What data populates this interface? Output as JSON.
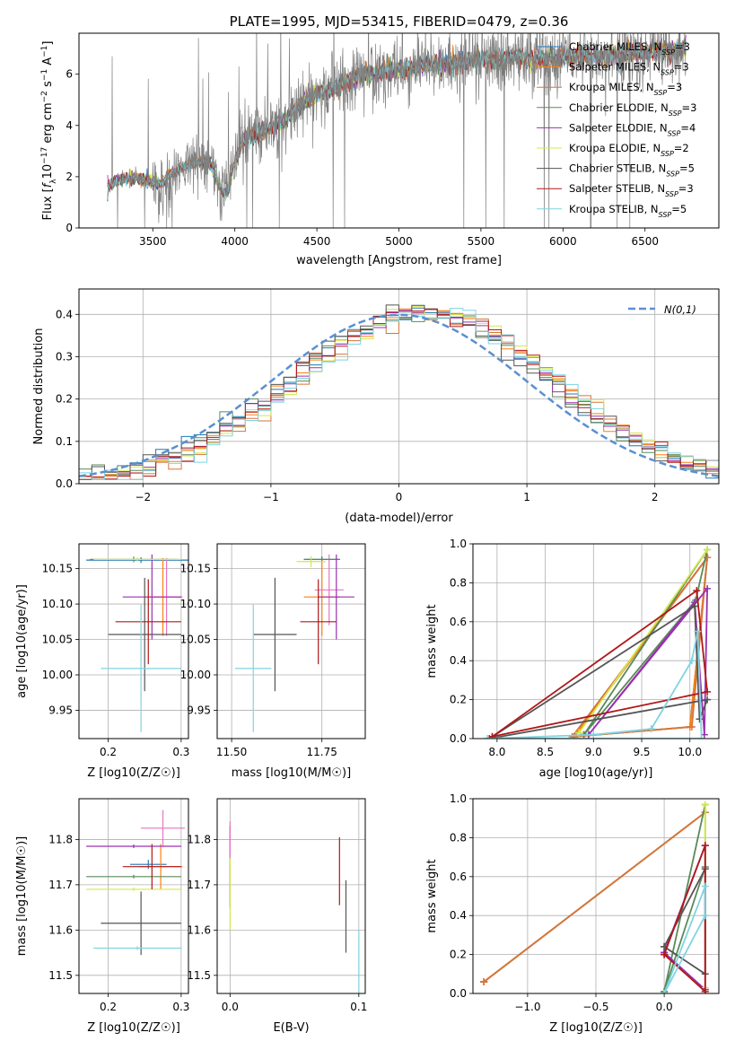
{
  "figure_title": "PLATE=1995, MJD=53415, FIBERID=0479, z=0.36",
  "models": [
    {
      "name": "Chabrier MILES, N",
      "sub": "SSP",
      "val": "=3",
      "color": "#1f77b4"
    },
    {
      "name": "Salpeter MILES, N",
      "sub": "SSP",
      "val": "=3",
      "color": "#ff7f0e"
    },
    {
      "name": "Kroupa MILES, N",
      "sub": "SSP",
      "val": "=3",
      "color": "#d6753a"
    },
    {
      "name": "Chabrier ELODIE, N",
      "sub": "SSP",
      "val": "=3",
      "color": "#5a8a5a"
    },
    {
      "name": "Salpeter ELODIE, N",
      "sub": "SSP",
      "val": "=4",
      "color": "#9a30b0"
    },
    {
      "name": "Kroupa ELODIE, N",
      "sub": "SSP",
      "val": "=2",
      "color": "#d4e84a"
    },
    {
      "name": "Chabrier STELIB, N",
      "sub": "SSP",
      "val": "=5",
      "color": "#555555"
    },
    {
      "name": "Salpeter STELIB, N",
      "sub": "SSP",
      "val": "=3",
      "color": "#b01818"
    },
    {
      "name": "Kroupa STELIB, N",
      "sub": "SSP",
      "val": "=5",
      "color": "#7fd4e0"
    }
  ],
  "chart_data": [
    {
      "id": "spectrum",
      "type": "line",
      "title": "PLATE=1995, MJD=53415, FIBERID=0479, z=0.36",
      "xlabel": "wavelength [Angstrom, rest frame]",
      "ylabel": "Flux [f_λ 10^-17 erg cm^-2 s^-1 A^-1]",
      "xlim": [
        3050,
        6950
      ],
      "ylim": [
        0,
        7.6
      ],
      "xticks": [
        3500,
        4000,
        4500,
        5000,
        5500,
        6000,
        6500
      ],
      "yticks": [
        0,
        2,
        4,
        6
      ],
      "data_color": "#808080",
      "continuum_knots": [
        [
          3220,
          0
        ],
        [
          3225,
          1.55
        ],
        [
          3260,
          1.75
        ],
        [
          3300,
          1.9
        ],
        [
          3400,
          1.95
        ],
        [
          3500,
          1.8
        ],
        [
          3550,
          1.7
        ],
        [
          3600,
          2.1
        ],
        [
          3700,
          2.4
        ],
        [
          3800,
          2.6
        ],
        [
          3850,
          2.5
        ],
        [
          3930,
          1.3
        ],
        [
          3960,
          1.5
        ],
        [
          3990,
          2.3
        ],
        [
          4050,
          3.5
        ],
        [
          4100,
          3.6
        ],
        [
          4200,
          3.9
        ],
        [
          4300,
          4.2
        ],
        [
          4400,
          4.8
        ],
        [
          4500,
          5.2
        ],
        [
          4600,
          5.4
        ],
        [
          4700,
          5.8
        ],
        [
          4800,
          6.0
        ],
        [
          4900,
          6.1
        ],
        [
          5000,
          6.2
        ],
        [
          5100,
          6.3
        ],
        [
          5200,
          6.4
        ],
        [
          5300,
          6.4
        ],
        [
          5400,
          6.5
        ],
        [
          5500,
          6.6
        ],
        [
          5600,
          6.5
        ],
        [
          5700,
          6.7
        ],
        [
          5800,
          6.6
        ],
        [
          5900,
          6.6
        ],
        [
          6000,
          6.7
        ],
        [
          6200,
          6.7
        ],
        [
          6400,
          6.8
        ],
        [
          6600,
          6.9
        ],
        [
          6750,
          7.0
        ]
      ],
      "legend": "top-right",
      "grid": false
    },
    {
      "id": "residual-histogram",
      "type": "line",
      "xlabel": "(data-model)/error",
      "ylabel": "Normed distribution",
      "xlim": [
        -2.5,
        2.5
      ],
      "ylim": [
        0,
        0.46
      ],
      "xticks": [
        -2,
        -1,
        0,
        1,
        2
      ],
      "yticks": [
        0.0,
        0.1,
        0.2,
        0.3,
        0.4
      ],
      "legend_label": "N(0,1)",
      "reference": "normal(0,1)",
      "bin_width": 0.1,
      "grid": true
    },
    {
      "id": "age-vs-metallicity",
      "type": "scatter",
      "xlabel": "Z [log10(Z/Z☉)]",
      "ylabel": "age [log10(age/yr)]",
      "xlim": [
        0.16,
        0.31
      ],
      "ylim": [
        9.91,
        10.185
      ],
      "xticks": [
        0.2,
        0.3
      ],
      "yticks": [
        9.95,
        10.0,
        10.05,
        10.1,
        10.15
      ],
      "points": [
        {
          "x": 0.245,
          "y": 10.162,
          "xerr": 0.075,
          "yerr": 0.004,
          "c": "#1f77b4"
        },
        {
          "x": 0.275,
          "y": 10.11,
          "xerr": 0.025,
          "yerr": 0.055,
          "c": "#ff7f0e"
        },
        {
          "x": 0.28,
          "y": 10.11,
          "xerr": 0.022,
          "yerr": 0.055,
          "c": "#e377c2"
        },
        {
          "x": 0.235,
          "y": 10.163,
          "xerr": 0.06,
          "yerr": 0.004,
          "c": "#5a8a5a"
        },
        {
          "x": 0.26,
          "y": 10.11,
          "xerr": 0.04,
          "yerr": 0.06,
          "c": "#9a30b0"
        },
        {
          "x": 0.24,
          "y": 10.163,
          "xerr": 0.06,
          "yerr": 0.003,
          "c": "#d4e84a"
        },
        {
          "x": 0.25,
          "y": 10.057,
          "xerr": 0.05,
          "yerr": 0.08,
          "c": "#555555"
        },
        {
          "x": 0.255,
          "y": 10.075,
          "xerr": 0.045,
          "yerr": 0.06,
          "c": "#b01818"
        },
        {
          "x": 0.245,
          "y": 10.009,
          "xerr": 0.055,
          "yerr": 0.09,
          "c": "#7fd4e0"
        }
      ],
      "grid": true
    },
    {
      "id": "age-vs-mass",
      "type": "scatter",
      "xlabel": "mass [log10(M/M☉)]",
      "ylabel": "",
      "xlim": [
        11.46,
        11.87
      ],
      "ylim": [
        9.91,
        10.185
      ],
      "xticks": [
        11.5,
        11.75
      ],
      "yticks": [
        9.95,
        10.0,
        10.05,
        10.1,
        10.15
      ],
      "points": [
        {
          "x": 11.75,
          "y": 10.163,
          "xerr": 0.05,
          "yerr": 0.004,
          "c": "#1f77b4"
        },
        {
          "x": 11.75,
          "y": 10.11,
          "xerr": 0.05,
          "yerr": 0.055,
          "c": "#ff7f0e"
        },
        {
          "x": 11.77,
          "y": 10.12,
          "xerr": 0.04,
          "yerr": 0.05,
          "c": "#e377c2"
        },
        {
          "x": 11.75,
          "y": 10.163,
          "xerr": 0.05,
          "yerr": 0.004,
          "c": "#5a8a5a"
        },
        {
          "x": 11.79,
          "y": 10.11,
          "xerr": 0.05,
          "yerr": 0.06,
          "c": "#9a30b0"
        },
        {
          "x": 11.72,
          "y": 10.16,
          "xerr": 0.04,
          "yerr": 0.008,
          "c": "#d4e84a"
        },
        {
          "x": 11.62,
          "y": 10.057,
          "xerr": 0.06,
          "yerr": 0.08,
          "c": "#555555"
        },
        {
          "x": 11.74,
          "y": 10.075,
          "xerr": 0.05,
          "yerr": 0.06,
          "c": "#b01818"
        },
        {
          "x": 11.56,
          "y": 10.009,
          "xerr": 0.05,
          "yerr": 0.09,
          "c": "#7fd4e0"
        }
      ],
      "grid": true
    },
    {
      "id": "mass-weight-vs-age",
      "type": "line",
      "xlabel": "age [log10(age/yr)]",
      "ylabel": "mass weight",
      "xlim": [
        7.75,
        10.3
      ],
      "ylim": [
        0,
        1.0
      ],
      "xticks": [
        8.0,
        8.5,
        9.0,
        9.5,
        10.0
      ],
      "yticks": [
        0.0,
        0.2,
        0.4,
        0.6,
        0.8,
        1.0
      ],
      "series": [
        {
          "c": "#1f77b4",
          "pts": [
            [
              8.8,
              0.01
            ],
            [
              10.0,
              0.06
            ],
            [
              10.18,
              0.93
            ],
            [
              8.8,
              0.01
            ]
          ]
        },
        {
          "c": "#ff7f0e",
          "pts": [
            [
              8.8,
              0.01
            ],
            [
              10.0,
              0.06
            ],
            [
              10.18,
              0.93
            ],
            [
              8.8,
              0.01
            ]
          ]
        },
        {
          "c": "#d6753a",
          "pts": [
            [
              8.78,
              0.01
            ],
            [
              10.02,
              0.06
            ],
            [
              10.18,
              0.93
            ],
            [
              8.78,
              0.01
            ]
          ]
        },
        {
          "c": "#5a8a5a",
          "pts": [
            [
              8.9,
              0.02
            ],
            [
              10.06,
              0.71
            ],
            [
              10.18,
              0.97
            ],
            [
              8.9,
              0.02
            ]
          ]
        },
        {
          "c": "#9a30b0",
          "pts": [
            [
              8.95,
              0.02
            ],
            [
              10.05,
              0.7
            ],
            [
              10.15,
              0.02
            ],
            [
              10.18,
              0.77
            ],
            [
              8.95,
              0.02
            ]
          ]
        },
        {
          "c": "#d4e84a",
          "pts": [
            [
              8.85,
              0.03
            ],
            [
              10.18,
              0.97
            ],
            [
              8.85,
              0.03
            ]
          ]
        },
        {
          "c": "#555555",
          "pts": [
            [
              7.92,
              0.0
            ],
            [
              10.05,
              0.68
            ],
            [
              10.1,
              0.1
            ],
            [
              10.18,
              0.2
            ],
            [
              7.92,
              0.0
            ]
          ]
        },
        {
          "c": "#b01818",
          "pts": [
            [
              7.95,
              0.01
            ],
            [
              10.07,
              0.76
            ],
            [
              10.18,
              0.24
            ],
            [
              7.95,
              0.01
            ]
          ]
        },
        {
          "c": "#7fd4e0",
          "pts": [
            [
              7.9,
              0.0
            ],
            [
              9.0,
              0.02
            ],
            [
              9.6,
              0.05
            ],
            [
              10.02,
              0.4
            ],
            [
              10.08,
              0.55
            ],
            [
              10.12,
              0.0
            ],
            [
              7.9,
              0.0
            ]
          ]
        }
      ],
      "grid": true
    },
    {
      "id": "mass-vs-metallicity",
      "type": "scatter",
      "xlabel": "Z [log10(Z/Z☉)]",
      "ylabel": "mass [log10(M/M☉)]",
      "xlim": [
        0.16,
        0.31
      ],
      "ylim": [
        11.46,
        11.89
      ],
      "xticks": [
        0.2,
        0.3
      ],
      "yticks": [
        11.5,
        11.6,
        11.7,
        11.8
      ],
      "points": [
        {
          "x": 0.255,
          "y": 11.745,
          "xerr": 0.025,
          "yerr": 0.01,
          "c": "#1f77b4"
        },
        {
          "x": 0.272,
          "y": 11.74,
          "xerr": 0.03,
          "yerr": 0.05,
          "c": "#ff7f0e"
        },
        {
          "x": 0.275,
          "y": 11.825,
          "xerr": 0.03,
          "yerr": 0.04,
          "c": "#e377c2"
        },
        {
          "x": 0.235,
          "y": 11.718,
          "xerr": 0.065,
          "yerr": 0.004,
          "c": "#5a8a5a"
        },
        {
          "x": 0.235,
          "y": 11.785,
          "xerr": 0.065,
          "yerr": 0.004,
          "c": "#9a30b0"
        },
        {
          "x": 0.235,
          "y": 11.69,
          "xerr": 0.065,
          "yerr": 0.004,
          "c": "#d4e84a"
        },
        {
          "x": 0.245,
          "y": 11.615,
          "xerr": 0.055,
          "yerr": 0.07,
          "c": "#555555"
        },
        {
          "x": 0.26,
          "y": 11.74,
          "xerr": 0.04,
          "yerr": 0.05,
          "c": "#b01818"
        },
        {
          "x": 0.24,
          "y": 11.56,
          "xerr": 0.06,
          "yerr": 0.004,
          "c": "#7fd4e0"
        }
      ],
      "grid": true
    },
    {
      "id": "mass-vs-ebv",
      "type": "scatter",
      "xlabel": "E(B-V)",
      "ylabel": "",
      "xlim": [
        -0.01,
        0.105
      ],
      "ylim": [
        11.46,
        11.89
      ],
      "xticks": [
        0.0,
        0.1
      ],
      "yticks": [
        11.5,
        11.6,
        11.7,
        11.8
      ],
      "points": [
        {
          "x": 0.0,
          "y": 11.74,
          "xerr": 0,
          "yerr": 0.09,
          "c": "#9a30b0"
        },
        {
          "x": 0.0,
          "y": 11.68,
          "xerr": 0,
          "yerr": 0.08,
          "c": "#d4e84a"
        },
        {
          "x": 0.0,
          "y": 11.8,
          "xerr": 0,
          "yerr": 0.04,
          "c": "#e377c2"
        },
        {
          "x": 0.085,
          "y": 11.73,
          "xerr": 0,
          "yerr": 0.075,
          "c": "#b01818"
        },
        {
          "x": 0.09,
          "y": 11.63,
          "xerr": 0,
          "yerr": 0.08,
          "c": "#555555"
        },
        {
          "x": 0.1,
          "y": 11.5,
          "xerr": 0,
          "yerr": 0.1,
          "c": "#7fd4e0"
        }
      ],
      "grid": true
    },
    {
      "id": "mass-weight-vs-metallicity",
      "type": "line",
      "xlabel": "Z [log10(Z/Z☉)]",
      "ylabel": "mass weight",
      "xlim": [
        -1.4,
        0.4
      ],
      "ylim": [
        0,
        1.0
      ],
      "xticks": [
        -1.0,
        -0.5,
        0.0
      ],
      "yticks": [
        0.0,
        0.2,
        0.4,
        0.6,
        0.8,
        1.0
      ],
      "series": [
        {
          "c": "#1f77b4",
          "pts": [
            [
              -1.32,
              0.06
            ],
            [
              0.3,
              0.93
            ],
            [
              -1.32,
              0.06
            ]
          ]
        },
        {
          "c": "#ff7f0e",
          "pts": [
            [
              -1.32,
              0.06
            ],
            [
              0.3,
              0.93
            ],
            [
              -1.32,
              0.06
            ]
          ]
        },
        {
          "c": "#d6753a",
          "pts": [
            [
              -1.32,
              0.06
            ],
            [
              0.3,
              0.93
            ],
            [
              -1.32,
              0.06
            ]
          ]
        },
        {
          "c": "#5a8a5a",
          "pts": [
            [
              0.0,
              0.01
            ],
            [
              0.3,
              0.65
            ],
            [
              0.3,
              0.97
            ],
            [
              0.0,
              0.01
            ]
          ]
        },
        {
          "c": "#9a30b0",
          "pts": [
            [
              0.0,
              0.21
            ],
            [
              0.3,
              0.76
            ],
            [
              0.3,
              0.02
            ],
            [
              0.0,
              0.21
            ]
          ]
        },
        {
          "c": "#d4e84a",
          "pts": [
            [
              0.3,
              0.03
            ],
            [
              0.3,
              0.97
            ]
          ]
        },
        {
          "c": "#555555",
          "pts": [
            [
              0.0,
              0.24
            ],
            [
              0.3,
              0.64
            ],
            [
              0.3,
              0.1
            ],
            [
              0.0,
              0.24
            ]
          ]
        },
        {
          "c": "#b01818",
          "pts": [
            [
              0.0,
              0.2
            ],
            [
              0.3,
              0.76
            ],
            [
              0.3,
              0.01
            ],
            [
              0.0,
              0.2
            ]
          ]
        },
        {
          "c": "#7fd4e0",
          "pts": [
            [
              0.0,
              0.0
            ],
            [
              0.3,
              0.55
            ],
            [
              0.3,
              0.4
            ],
            [
              0.0,
              0.0
            ]
          ]
        }
      ],
      "grid": true
    }
  ]
}
